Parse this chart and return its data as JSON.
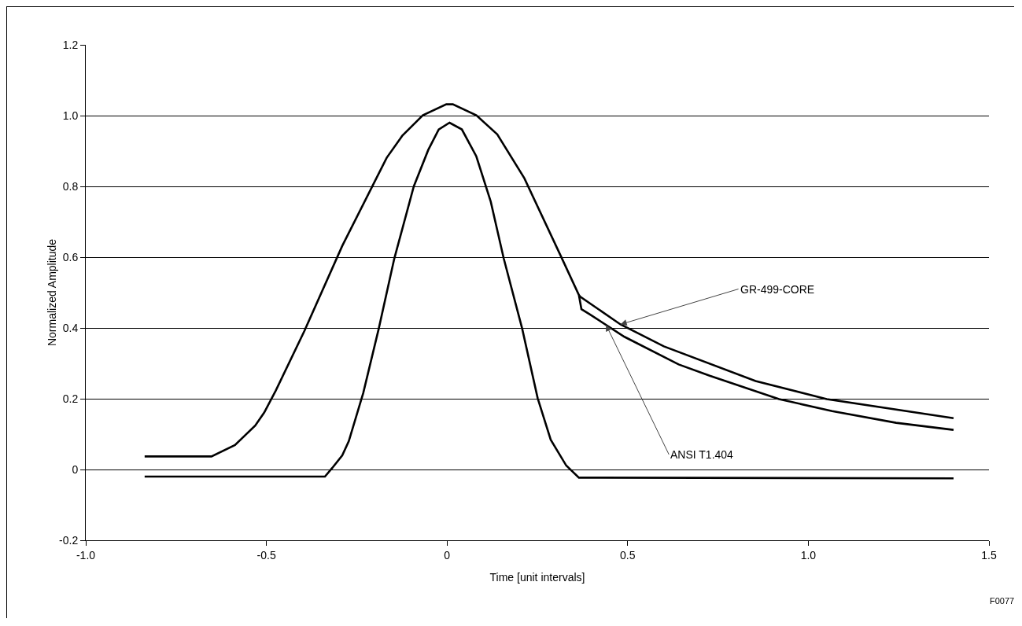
{
  "chart_data": {
    "type": "line",
    "xlabel": "Time [unit intervals]",
    "ylabel": "Normalized Amplitude",
    "series": [
      {
        "color": "#000000",
        "x": [
          -0.837,
          -0.652,
          -0.587,
          -0.531,
          -0.506,
          -0.474,
          -0.395,
          -0.29,
          -0.203,
          -0.167,
          -0.124,
          -0.067,
          -0.002,
          0.016,
          0.081,
          0.139,
          0.214,
          0.315,
          0.365,
          0.372,
          0.394,
          0.491,
          0.641,
          0.727,
          0.919,
          1.066,
          1.243,
          1.402
        ],
        "values": [
          0.037,
          0.037,
          0.069,
          0.124,
          0.161,
          0.223,
          0.391,
          0.632,
          0.808,
          0.881,
          0.943,
          1.001,
          1.032,
          1.032,
          1.001,
          0.947,
          0.823,
          0.603,
          0.493,
          0.453,
          0.439,
          0.375,
          0.297,
          0.265,
          0.199,
          0.165,
          0.132,
          0.112
        ]
      },
      {
        "color": "#000000",
        "x": [
          0.365,
          0.368,
          0.48,
          0.6,
          0.854,
          1.051,
          1.402
        ],
        "values": [
          0.493,
          0.489,
          0.41,
          0.348,
          0.25,
          0.199,
          0.145
        ]
      },
      {
        "color": "#000000",
        "x": [
          -0.837,
          -0.338,
          -0.318,
          -0.29,
          -0.272,
          -0.232,
          -0.189,
          -0.146,
          -0.092,
          -0.052,
          -0.023,
          0.007,
          0.041,
          0.081,
          0.121,
          0.157,
          0.208,
          0.251,
          0.287,
          0.33,
          0.365,
          1.402
        ],
        "values": [
          -0.02,
          -0.02,
          0.004,
          0.04,
          0.08,
          0.216,
          0.398,
          0.596,
          0.8,
          0.903,
          0.961,
          0.98,
          0.961,
          0.885,
          0.757,
          0.596,
          0.398,
          0.201,
          0.084,
          0.011,
          -0.023,
          -0.025
        ]
      }
    ],
    "xlim": [
      -1.0,
      1.5
    ],
    "xticks": [
      {
        "value": -1.0,
        "label": "-1.0"
      },
      {
        "value": -0.5,
        "label": "-0.5"
      },
      0,
      0.5,
      {
        "value": 1.0,
        "label": "1.0"
      },
      1.5
    ],
    "ylim": [
      -0.2,
      1.2
    ],
    "yticks": [
      -0.2,
      0,
      0.2,
      0.4,
      0.6,
      0.8,
      {
        "value": 1.0,
        "label": "1.0"
      },
      1.2
    ],
    "grid": "y",
    "marker": "none",
    "line_style": "solid",
    "annotations": [
      {
        "text": "GR-499-CORE",
        "x": 0.48,
        "y": 0.41
      },
      {
        "text": "ANSI T1.404",
        "x": 0.44,
        "y": 0.409
      },
      "F0077"
    ]
  }
}
